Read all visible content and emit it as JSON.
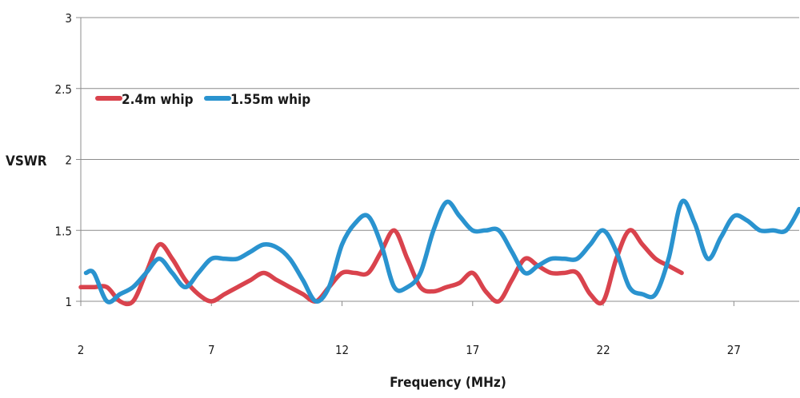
{
  "chart_data": {
    "type": "line",
    "title": "",
    "xlabel": "Frequency (MHz)",
    "ylabel": "VSWR",
    "xlim": [
      2,
      29.5
    ],
    "ylim": [
      1,
      3
    ],
    "xticks": [
      "2",
      "7",
      "12",
      "17",
      "22",
      "27"
    ],
    "yticks": [
      "1",
      "1.5",
      "2",
      "2.5",
      "3"
    ],
    "grid": "horizontal",
    "legend": "top-left",
    "series": [
      {
        "name": "2.4m whip",
        "color": "#d9434d",
        "x": [
          2,
          2.5,
          3,
          3.5,
          4,
          4.5,
          5,
          5.5,
          6,
          6.5,
          7,
          7.5,
          8,
          8.5,
          9,
          9.5,
          10,
          10.5,
          11,
          11.5,
          12,
          12.5,
          13,
          13.5,
          14,
          14.5,
          15,
          15.5,
          16,
          16.5,
          17,
          17.5,
          18,
          18.5,
          19,
          19.5,
          20,
          20.5,
          21,
          21.5,
          22,
          22.5,
          23,
          23.5,
          24,
          24.5,
          25
        ],
        "values": [
          1.1,
          1.1,
          1.1,
          1.0,
          1.0,
          1.2,
          1.4,
          1.3,
          1.15,
          1.05,
          1.0,
          1.05,
          1.1,
          1.15,
          1.2,
          1.15,
          1.1,
          1.05,
          1.0,
          1.1,
          1.2,
          1.2,
          1.2,
          1.35,
          1.5,
          1.3,
          1.1,
          1.07,
          1.1,
          1.13,
          1.2,
          1.07,
          1.0,
          1.15,
          1.3,
          1.25,
          1.2,
          1.2,
          1.2,
          1.05,
          1.0,
          1.3,
          1.5,
          1.4,
          1.3,
          1.25,
          1.2
        ]
      },
      {
        "name": "1.55m whip",
        "color": "#2a93cf",
        "x": [
          2.2,
          2.5,
          3,
          3.5,
          4,
          4.5,
          5,
          5.5,
          6,
          6.5,
          7,
          7.5,
          8,
          8.5,
          9,
          9.5,
          10,
          10.5,
          11,
          11.5,
          12,
          12.5,
          13,
          13.5,
          14,
          14.5,
          15,
          15.5,
          16,
          16.5,
          17,
          17.5,
          18,
          18.5,
          19,
          19.5,
          20,
          20.5,
          21,
          21.5,
          22,
          22.5,
          23,
          23.5,
          24,
          24.5,
          25,
          25.5,
          26,
          26.5,
          27,
          27.5,
          28,
          28.5,
          29,
          29.5
        ],
        "values": [
          1.2,
          1.2,
          1.0,
          1.05,
          1.1,
          1.2,
          1.3,
          1.2,
          1.1,
          1.2,
          1.3,
          1.3,
          1.3,
          1.35,
          1.4,
          1.38,
          1.3,
          1.15,
          1.0,
          1.1,
          1.4,
          1.55,
          1.6,
          1.4,
          1.1,
          1.1,
          1.2,
          1.5,
          1.7,
          1.6,
          1.5,
          1.5,
          1.5,
          1.35,
          1.2,
          1.25,
          1.3,
          1.3,
          1.3,
          1.4,
          1.5,
          1.35,
          1.1,
          1.05,
          1.05,
          1.3,
          1.7,
          1.55,
          1.3,
          1.45,
          1.6,
          1.57,
          1.5,
          1.5,
          1.5,
          1.65
        ]
      }
    ]
  }
}
